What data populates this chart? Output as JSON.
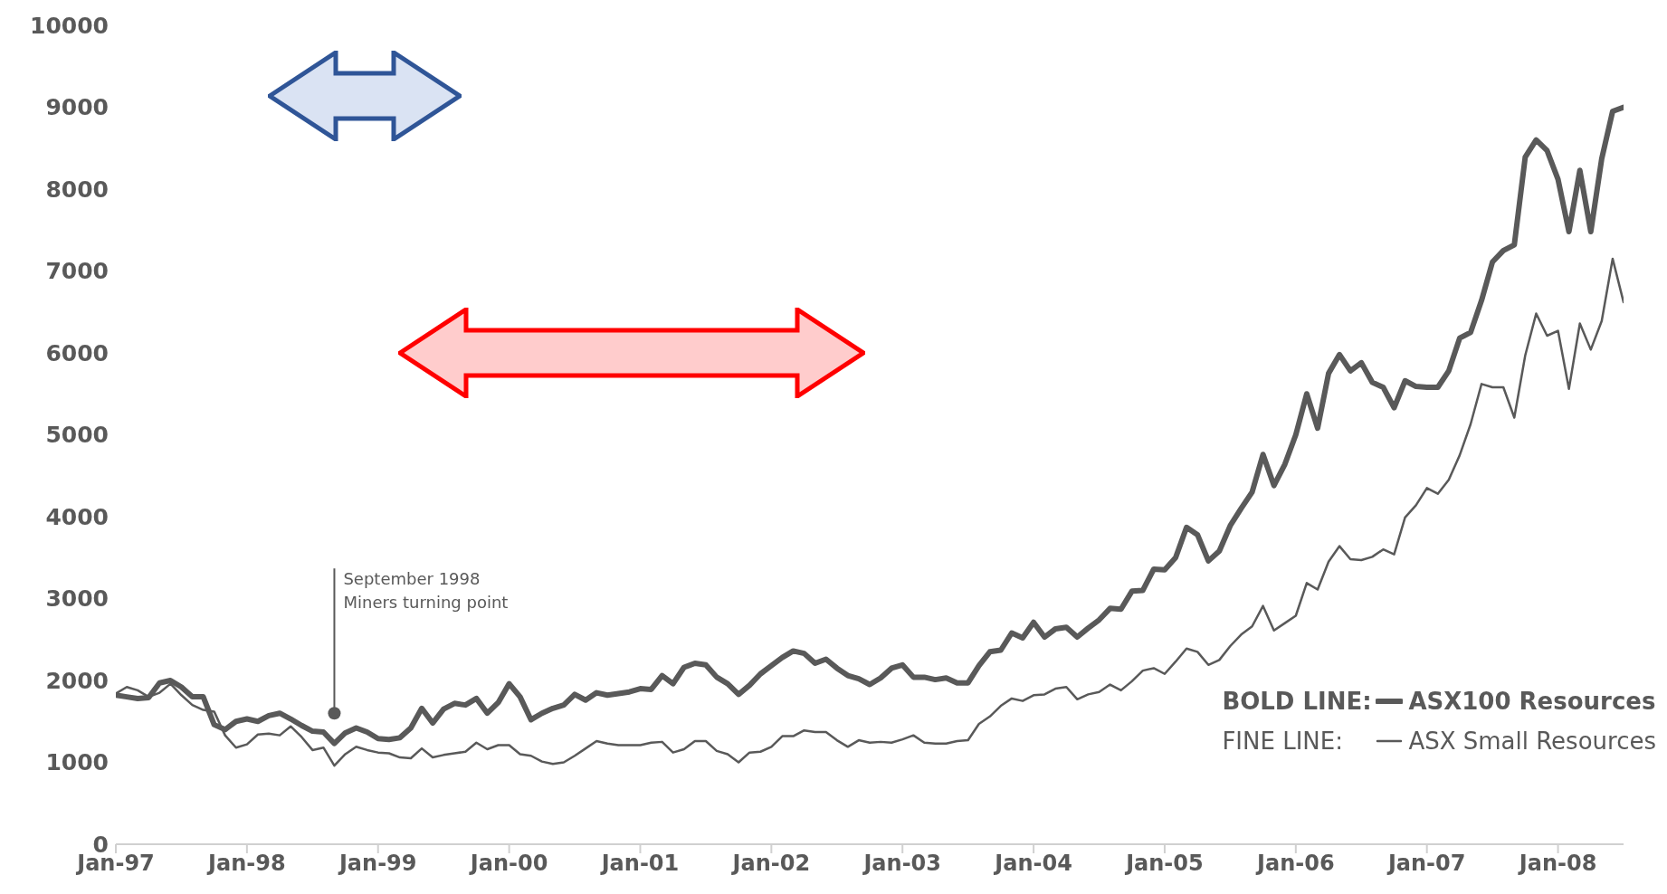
{
  "chart_data": {
    "type": "line",
    "x": [
      "1997-01",
      "1997-02",
      "1997-03",
      "1997-04",
      "1997-05",
      "1997-06",
      "1997-07",
      "1997-08",
      "1997-09",
      "1997-10",
      "1997-11",
      "1997-12",
      "1998-01",
      "1998-02",
      "1998-03",
      "1998-04",
      "1998-05",
      "1998-06",
      "1998-07",
      "1998-08",
      "1998-09",
      "1998-10",
      "1998-11",
      "1998-12",
      "1999-01",
      "1999-02",
      "1999-03",
      "1999-04",
      "1999-05",
      "1999-06",
      "1999-07",
      "1999-08",
      "1999-09",
      "1999-10",
      "1999-11",
      "1999-12",
      "2000-01",
      "2000-02",
      "2000-03",
      "2000-04",
      "2000-05",
      "2000-06",
      "2000-07",
      "2000-08",
      "2000-09",
      "2000-10",
      "2000-11",
      "2000-12",
      "2001-01",
      "2001-02",
      "2001-03",
      "2001-04",
      "2001-05",
      "2001-06",
      "2001-07",
      "2001-08",
      "2001-09",
      "2001-10",
      "2001-11",
      "2001-12",
      "2002-01",
      "2002-02",
      "2002-03",
      "2002-04",
      "2002-05",
      "2002-06",
      "2002-07",
      "2002-08",
      "2002-09",
      "2002-10",
      "2002-11",
      "2002-12",
      "2003-01",
      "2003-02",
      "2003-03",
      "2003-04",
      "2003-05",
      "2003-06",
      "2003-07",
      "2003-08",
      "2003-09",
      "2003-10",
      "2003-11",
      "2003-12",
      "2004-01",
      "2004-02",
      "2004-03",
      "2004-04",
      "2004-05",
      "2004-06",
      "2004-07",
      "2004-08",
      "2004-09",
      "2004-10",
      "2004-11",
      "2004-12",
      "2005-01",
      "2005-02",
      "2005-03",
      "2005-04",
      "2005-05",
      "2005-06",
      "2005-07",
      "2005-08",
      "2005-09",
      "2005-10",
      "2005-11",
      "2005-12",
      "2006-01",
      "2006-02",
      "2006-03",
      "2006-04",
      "2006-05",
      "2006-06",
      "2006-07",
      "2006-08",
      "2006-09",
      "2006-10",
      "2006-11",
      "2006-12",
      "2007-01",
      "2007-02",
      "2007-03",
      "2007-04",
      "2007-05",
      "2007-06",
      "2007-07",
      "2007-08",
      "2007-09",
      "2007-10",
      "2007-11",
      "2007-12",
      "2008-01",
      "2008-02",
      "2008-03",
      "2008-04",
      "2008-05",
      "2008-06",
      "2008-07"
    ],
    "series": [
      {
        "name": "ASX100 Resources",
        "color": "#595959",
        "values": [
          1820,
          1800,
          1780,
          1790,
          1970,
          2000,
          1920,
          1800,
          1800,
          1460,
          1400,
          1500,
          1530,
          1500,
          1570,
          1600,
          1530,
          1450,
          1380,
          1370,
          1230,
          1360,
          1420,
          1370,
          1290,
          1280,
          1300,
          1420,
          1660,
          1480,
          1650,
          1720,
          1700,
          1780,
          1600,
          1730,
          1960,
          1800,
          1520,
          1600,
          1660,
          1700,
          1830,
          1760,
          1850,
          1820,
          1840,
          1860,
          1900,
          1890,
          2060,
          1960,
          2160,
          2210,
          2190,
          2040,
          1960,
          1830,
          1940,
          2080,
          2180,
          2280,
          2360,
          2330,
          2210,
          2260,
          2150,
          2060,
          2020,
          1950,
          2030,
          2150,
          2190,
          2040,
          2040,
          2010,
          2030,
          1970,
          1970,
          2180,
          2350,
          2370,
          2580,
          2520,
          2710,
          2530,
          2630,
          2650,
          2530,
          2640,
          2740,
          2880,
          2870,
          3090,
          3100,
          3360,
          3350,
          3500,
          3870,
          3780,
          3460,
          3580,
          3890,
          4100,
          4300,
          4760,
          4380,
          4640,
          5000,
          5500,
          5080,
          5750,
          5980,
          5780,
          5880,
          5640,
          5580,
          5330,
          5660,
          5590,
          5580,
          5580,
          5780,
          6180,
          6250,
          6640,
          7110,
          7250,
          7320,
          8390,
          8600,
          8470,
          8120,
          7480,
          8230,
          7480,
          8370,
          8950,
          9000
        ]
      },
      {
        "name": "ASX Small Resources",
        "color": "#595959",
        "values": [
          1840,
          1920,
          1880,
          1800,
          1850,
          1960,
          1820,
          1700,
          1640,
          1620,
          1330,
          1180,
          1220,
          1340,
          1350,
          1330,
          1440,
          1310,
          1150,
          1180,
          960,
          1100,
          1190,
          1150,
          1120,
          1110,
          1060,
          1050,
          1170,
          1060,
          1090,
          1110,
          1130,
          1240,
          1160,
          1210,
          1210,
          1100,
          1080,
          1010,
          980,
          1000,
          1080,
          1170,
          1260,
          1230,
          1210,
          1210,
          1210,
          1240,
          1250,
          1120,
          1160,
          1260,
          1260,
          1140,
          1100,
          1000,
          1120,
          1130,
          1190,
          1320,
          1320,
          1390,
          1370,
          1370,
          1270,
          1190,
          1270,
          1240,
          1250,
          1240,
          1280,
          1330,
          1240,
          1230,
          1230,
          1260,
          1270,
          1470,
          1560,
          1690,
          1780,
          1750,
          1820,
          1830,
          1900,
          1920,
          1770,
          1830,
          1860,
          1950,
          1880,
          1990,
          2120,
          2150,
          2080,
          2230,
          2390,
          2350,
          2190,
          2250,
          2420,
          2560,
          2660,
          2910,
          2610,
          2700,
          2790,
          3190,
          3110,
          3450,
          3640,
          3480,
          3470,
          3510,
          3600,
          3540,
          3990,
          4140,
          4350,
          4280,
          4450,
          4750,
          5130,
          5620,
          5580,
          5580,
          5210,
          5970,
          6480,
          6210,
          6270,
          5560,
          6360,
          6040,
          6390,
          7150,
          6620
        ]
      }
    ],
    "xlim": [
      "1997-01",
      "2008-07"
    ],
    "xticks": [
      {
        "value": "1997-01",
        "label": "Jan-97"
      },
      {
        "value": "1998-01",
        "label": "Jan-98"
      },
      {
        "value": "1999-01",
        "label": "Jan-99"
      },
      {
        "value": "2000-01",
        "label": "Jan-00"
      },
      {
        "value": "2001-01",
        "label": "Jan-01"
      },
      {
        "value": "2002-01",
        "label": "Jan-02"
      },
      {
        "value": "2003-01",
        "label": "Jan-03"
      },
      {
        "value": "2004-01",
        "label": "Jan-04"
      },
      {
        "value": "2005-01",
        "label": "Jan-05"
      },
      {
        "value": "2006-01",
        "label": "Jan-06"
      },
      {
        "value": "2007-01",
        "label": "Jan-07"
      },
      {
        "value": "2008-01",
        "label": "Jan-08"
      }
    ],
    "ylim": [
      0,
      10000
    ],
    "yticks": [
      0,
      1000,
      2000,
      3000,
      4000,
      5000,
      6000,
      7000,
      8000,
      9000,
      10000
    ],
    "grid": false,
    "legend": "bottom right",
    "annotations": [
      {
        "text": "September 1998\nMiners turning point",
        "x": "1998-09",
        "y": 1600
      },
      "BOLD LINE:",
      "FINE LINE:"
    ]
  }
}
